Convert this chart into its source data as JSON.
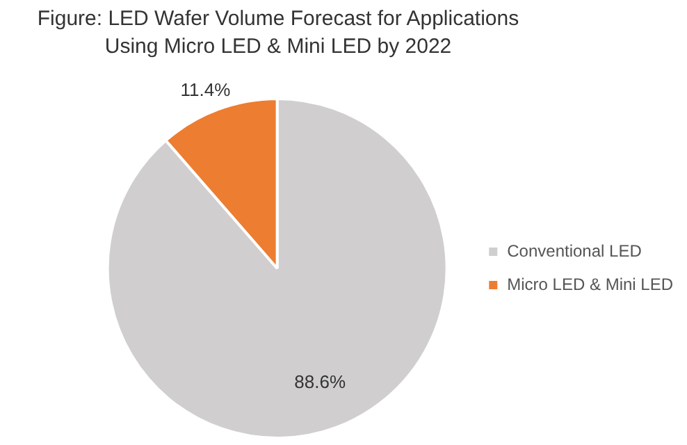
{
  "chart_data": {
    "type": "pie",
    "title": "Figure: LED Wafer Volume Forecast for Applications\nUsing Micro LED & Mini LED by 2022",
    "categories": [
      "Conventional LED",
      "Micro LED & Mini LED"
    ],
    "values": [
      88.6,
      11.4
    ],
    "colors": [
      "#d0cece",
      "#ed7d31"
    ],
    "value_labels": [
      "88.6%",
      "11.4%"
    ],
    "legend": "right"
  }
}
